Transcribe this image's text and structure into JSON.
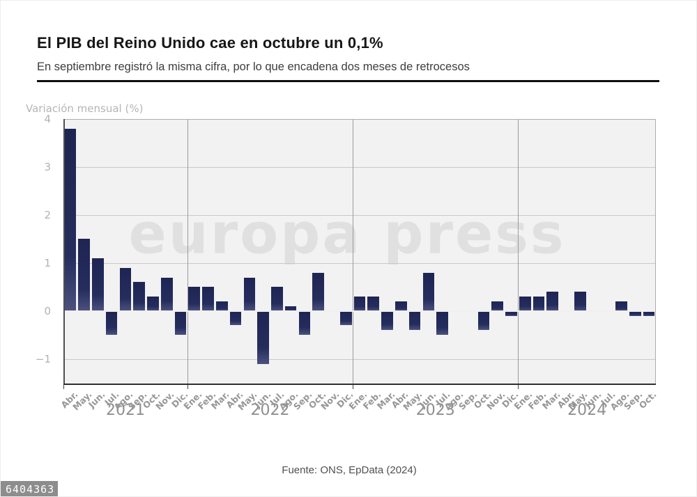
{
  "header": {
    "title": "El PIB del Reino Unido cae en octubre un 0,1%",
    "subtitle": "En septiembre registró la misma cifra, por lo que encadena dos meses de retrocesos"
  },
  "watermark": "europa press",
  "chart_data": {
    "type": "bar",
    "ylabel": "Variación mensual (%)",
    "ylim": [
      -1.54,
      4
    ],
    "yticks": [
      4,
      3,
      2,
      1,
      0,
      -1
    ],
    "grid": true,
    "bar_color": "#232c5c",
    "categories": [
      "Abr.",
      "May.",
      "Jun.",
      "Jul.",
      "Ago.",
      "Sep.",
      "Oct.",
      "Nov.",
      "Dic.",
      "Ene.",
      "Feb.",
      "Mar.",
      "Abr.",
      "May.",
      "Jun.",
      "Jul.",
      "Ago.",
      "Sep.",
      "Oct.",
      "Nov.",
      "Dic.",
      "Ene.",
      "Feb.",
      "Mar.",
      "Abr.",
      "May.",
      "Jun.",
      "Jul.",
      "Ago.",
      "Sep.",
      "Oct.",
      "Nov.",
      "Dic.",
      "Ene.",
      "Feb.",
      "Mar.",
      "Abr.",
      "May.",
      "Jun.",
      "Jul.",
      "Ago.",
      "Sep.",
      "Oct."
    ],
    "values": [
      3.8,
      1.5,
      1.1,
      -0.5,
      0.9,
      0.6,
      0.3,
      0.7,
      -0.5,
      0.5,
      0.5,
      0.2,
      -0.3,
      0.7,
      -1.1,
      0.5,
      0.1,
      -0.5,
      0.8,
      0,
      -0.3,
      0.3,
      0.3,
      -0.4,
      0.2,
      -0.4,
      0.8,
      -0.5,
      0,
      0,
      -0.4,
      0.2,
      -0.1,
      0.3,
      0.3,
      0.4,
      0,
      0.4,
      0,
      0,
      0.2,
      -0.1,
      -0.1
    ],
    "years": [
      {
        "label": "2021",
        "months": 9
      },
      {
        "label": "2022",
        "months": 12
      },
      {
        "label": "2023",
        "months": 12
      },
      {
        "label": "2024",
        "months": 10
      }
    ]
  },
  "footer": {
    "source": "Fuente: ONS, EpData (2024)"
  },
  "badge": {
    "id": "6404363"
  }
}
